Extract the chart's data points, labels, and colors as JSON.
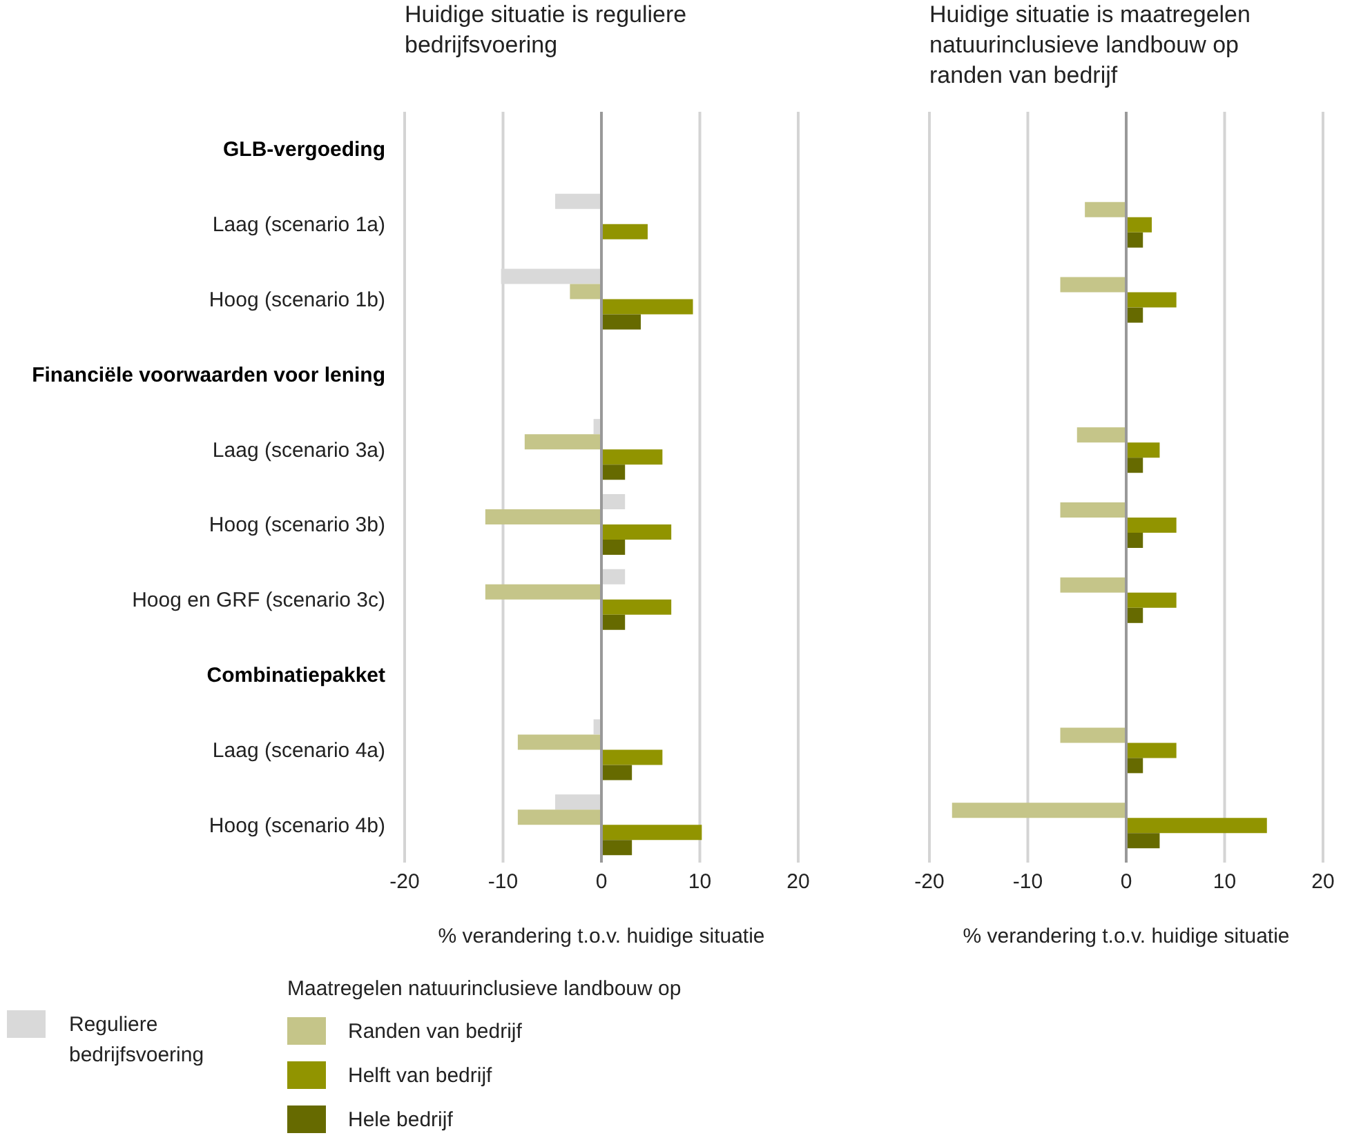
{
  "chart_data": [
    {
      "type": "bar",
      "orientation": "horizontal",
      "title": "Huidige situatie is reguliere bedrijfsvoering",
      "xlabel": "% verandering t.o.v. huidige situatie",
      "categories": [
        "GLB-vergoeding",
        "Laag (scenario 1a)",
        "Hoog (scenario 1b)",
        "Financiële voorwaarden voor lening",
        "Laag (scenario 3a)",
        "Hoog (scenario 3b)",
        "Hoog en GRF (scenario 3c)",
        "Combinatiepakket",
        "Laag (scenario 4a)",
        "Hoog (scenario 4b)"
      ],
      "series": [
        {
          "name": "Reguliere bedrijfsvoering",
          "color": "#d9d9d9",
          "values": [
            null,
            -4.7,
            -10.2,
            null,
            -0.8,
            2.4,
            2.4,
            null,
            -0.8,
            -4.7
          ]
        },
        {
          "name": "Randen van bedrijf",
          "color": "#c5c589",
          "values": [
            null,
            0,
            -3.2,
            null,
            -7.8,
            -11.8,
            -11.8,
            null,
            -8.5,
            -8.5
          ]
        },
        {
          "name": "Helft van bedrijf",
          "color": "#919400",
          "values": [
            null,
            4.7,
            9.3,
            null,
            6.2,
            7.1,
            7.1,
            null,
            6.2,
            10.2
          ]
        },
        {
          "name": "Hele bedrijf",
          "color": "#666a00",
          "values": [
            null,
            0,
            4.0,
            null,
            2.4,
            2.4,
            2.4,
            null,
            3.1,
            3.1
          ]
        }
      ],
      "xlim": [
        -20,
        20
      ],
      "xticks": [
        -20,
        -10,
        0,
        10,
        20
      ],
      "grid": "x",
      "ref_lines": [
        {
          "axis": "x",
          "value": 0,
          "color": "#999999"
        }
      ],
      "legend": "bottom",
      "legend_title": "Maatregelen natuurinclusieve landbouw op"
    },
    {
      "type": "bar",
      "orientation": "horizontal",
      "title": "Huidige situatie is maatregelen natuurinclusieve landbouw op randen van bedrijf",
      "xlabel": "% verandering t.o.v. huidige situatie",
      "categories": [
        null,
        null,
        null,
        null,
        null,
        null,
        null,
        null,
        null,
        null
      ],
      "series": [
        {
          "color": "#c5c589",
          "values": [
            null,
            -4.2,
            -6.7,
            null,
            -5.0,
            -6.7,
            -6.7,
            null,
            -6.7,
            -17.7
          ]
        },
        {
          "color": "#919400",
          "values": [
            null,
            2.6,
            5.1,
            null,
            3.4,
            5.1,
            5.1,
            null,
            5.1,
            14.3
          ]
        },
        {
          "color": "#666a00",
          "values": [
            null,
            1.7,
            1.7,
            null,
            1.7,
            1.7,
            1.7,
            null,
            1.7,
            3.4
          ]
        }
      ],
      "xlim": [
        -20,
        20
      ],
      "xticks": [
        -20,
        -10,
        0,
        10,
        20
      ],
      "grid": "x",
      "ref_lines": [
        {
          "axis": "x",
          "value": 0,
          "color": "#999999"
        }
      ],
      "tick_labels": "x"
    }
  ]
}
